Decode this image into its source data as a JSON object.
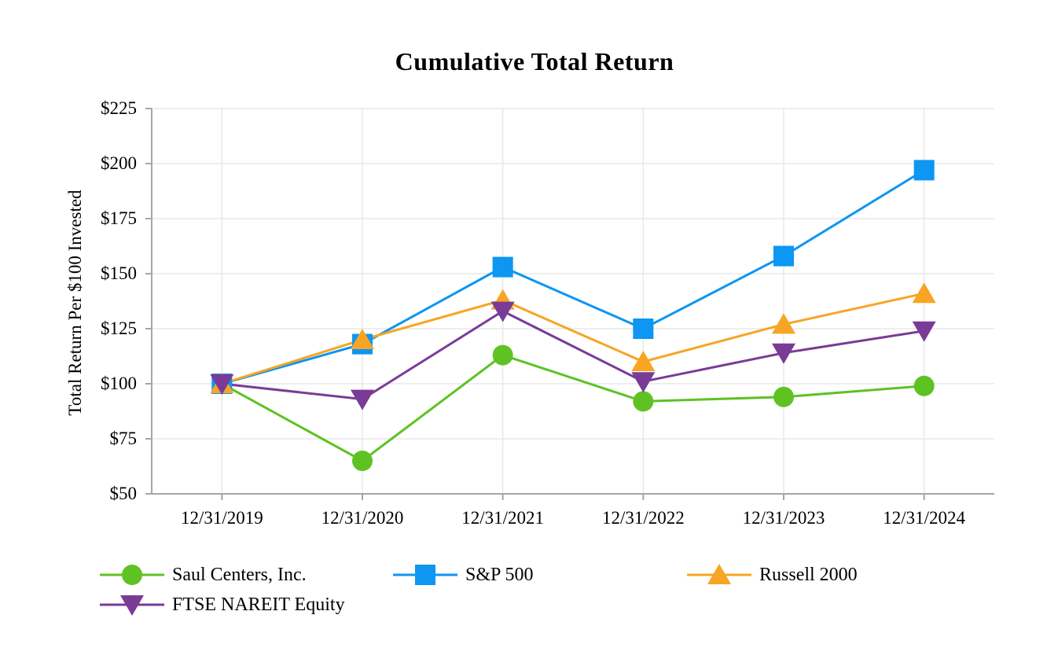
{
  "title": "Cumulative Total Return",
  "chart_data": {
    "type": "line",
    "title": "Cumulative Total Return",
    "xlabel": "",
    "ylabel": "Total Return Per $100 Invested",
    "categories": [
      "12/31/2019",
      "12/31/2020",
      "12/31/2021",
      "12/31/2022",
      "12/31/2023",
      "12/31/2024"
    ],
    "series": [
      {
        "name": "Saul Centers, Inc.",
        "marker": "circle",
        "color": "#5FC223",
        "values": [
          100,
          65,
          113,
          92,
          94,
          99
        ]
      },
      {
        "name": "S&P 500",
        "marker": "square",
        "color": "#0D96F2",
        "values": [
          100,
          118,
          153,
          125,
          158,
          197
        ]
      },
      {
        "name": "Russell 2000",
        "marker": "triangle-up",
        "color": "#F7A523",
        "values": [
          100,
          120,
          138,
          110,
          127,
          141
        ]
      },
      {
        "name": "FTSE NAREIT Equity",
        "marker": "triangle-down",
        "color": "#7A3B97",
        "values": [
          100,
          93,
          133,
          101,
          114,
          124
        ]
      }
    ],
    "yticks": [
      "$50",
      "$75",
      "$100",
      "$125",
      "$150",
      "$175",
      "$200",
      "$225"
    ],
    "ylim": [
      50,
      225
    ],
    "ytick_step": 25,
    "grid": true,
    "legend_position": "bottom"
  },
  "colors": {
    "grid": "#E8E8E8",
    "axis": "#A6A6A6",
    "text": "#000000",
    "background": "#FFFFFF"
  }
}
